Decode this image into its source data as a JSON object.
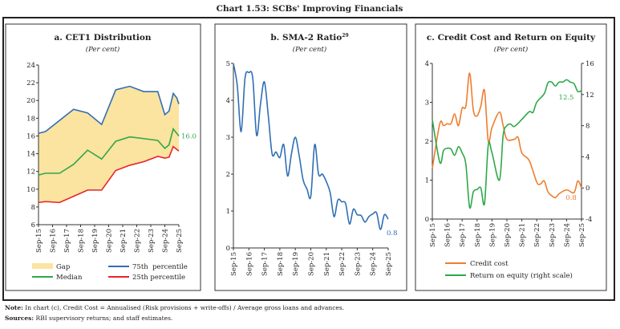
{
  "title": "Chart 1.53: SCBs' Improving Financials",
  "notes": {
    "note_label": "Note:",
    "note_text": "In chart (c), Credit Cost = Annualised (Risk provisions + write-offs) / Average gross loans and advances.",
    "sources_label": "Sources:",
    "sources_text": "RBI supervisory returns; and staff estimates."
  },
  "colors": {
    "gap": "#fbe3a0",
    "p75": "#2f6fb5",
    "median": "#2ea84a",
    "p25": "#e8242a",
    "sma": "#2f6fb5",
    "credit": "#ef7d2e",
    "roe": "#2ea84a"
  },
  "chart_data": [
    {
      "type": "area",
      "title": "a. CET1 Distribution",
      "subtitle": "(Per cent)",
      "x_ticks": [
        "Sep-15",
        "Sep-16",
        "Sep-17",
        "Sep-18",
        "Sep-19",
        "Sep-20",
        "Sep-21",
        "Sep-22",
        "Sep-23",
        "Sep-24",
        "Sep-25"
      ],
      "ylim": [
        6,
        24
      ],
      "y_ticks": [
        "6",
        "8",
        "10",
        "12",
        "14",
        "16",
        "18",
        "20",
        "22",
        "24"
      ],
      "x_unit": "years since Sep-15",
      "series": [
        {
          "name": "75th  percentile",
          "x": [
            0,
            0.5,
            2.5,
            3.5,
            4.5,
            5.5,
            6.5,
            7.5,
            8.5,
            9,
            9.3,
            9.6,
            9.85,
            10
          ],
          "values": [
            16.3,
            16.5,
            19.0,
            18.6,
            17.3,
            21.2,
            21.6,
            21.0,
            21.0,
            18.4,
            18.8,
            20.8,
            20.3,
            19.6
          ]
        },
        {
          "name": "Median",
          "x": [
            0,
            0.5,
            1.5,
            2.5,
            3.5,
            4.5,
            5.5,
            6.5,
            7.5,
            8.5,
            9,
            9.3,
            9.6,
            10
          ],
          "values": [
            11.6,
            11.8,
            11.8,
            12.8,
            14.4,
            13.4,
            15.4,
            15.9,
            15.7,
            15.5,
            14.6,
            15.0,
            16.8,
            16.0
          ]
        },
        {
          "name": "25th percentile",
          "x": [
            0,
            0.5,
            1.5,
            2.5,
            3.5,
            4.5,
            5.5,
            6.5,
            7.5,
            8.5,
            9,
            9.3,
            9.6,
            10
          ],
          "values": [
            8.5,
            8.6,
            8.5,
            9.2,
            9.9,
            9.9,
            12.1,
            12.7,
            13.1,
            13.7,
            13.5,
            13.6,
            14.8,
            14.3
          ]
        }
      ],
      "gap_label": "Gap",
      "annotation": "16.0"
    },
    {
      "type": "line",
      "title": "b. SMA-2 Ratio",
      "title_sup": "29",
      "subtitle": "(Per cent)",
      "x_ticks": [
        "Sep-15",
        "Sep-16",
        "Sep-17",
        "Sep-18",
        "Sep-19",
        "Sep-20",
        "Sep-21",
        "Sep-22",
        "Sep-23",
        "Sep-24",
        "Sep-25"
      ],
      "ylim": [
        0,
        5
      ],
      "y_ticks": [
        "0",
        "1",
        "2",
        "3",
        "4",
        "5"
      ],
      "series": [
        {
          "name": "SMA-2 ratio",
          "x": [
            0,
            0.25,
            0.5,
            0.75,
            1,
            1.25,
            1.5,
            1.75,
            2,
            2.25,
            2.5,
            2.75,
            3,
            3.25,
            3.5,
            3.75,
            4,
            4.25,
            4.5,
            4.75,
            5,
            5.25,
            5.5,
            5.75,
            6,
            6.25,
            6.5,
            6.75,
            7,
            7.25,
            7.5,
            7.75,
            8,
            8.25,
            8.5,
            8.75,
            9,
            9.25,
            9.5,
            9.75,
            10
          ],
          "values": [
            5.0,
            4.4,
            3.15,
            4.6,
            4.75,
            4.6,
            3.05,
            3.9,
            4.5,
            3.6,
            2.55,
            2.6,
            2.45,
            2.8,
            1.95,
            2.55,
            3.0,
            2.5,
            1.85,
            1.6,
            1.4,
            2.8,
            2.0,
            2.0,
            1.8,
            1.5,
            0.85,
            1.3,
            1.25,
            1.2,
            0.65,
            1.05,
            0.9,
            0.88,
            0.7,
            0.85,
            0.92,
            0.95,
            0.5,
            0.9,
            0.78
          ]
        }
      ],
      "annotation": "0.8"
    },
    {
      "type": "line",
      "title": "c. Credit Cost and Return on Equity",
      "subtitle": "(Per cent)",
      "x_ticks": [
        "Sep-15",
        "Sep-16",
        "Sep-17",
        "Sep-18",
        "Sep-19",
        "Sep-20",
        "Sep-21",
        "Sep-22",
        "Sep-23",
        "Sep-24",
        "Sep-25"
      ],
      "ylim": [
        0,
        4
      ],
      "y_ticks": [
        "0",
        "1",
        "2",
        "3",
        "4"
      ],
      "y2lim": [
        -4,
        16
      ],
      "y2_ticks": [
        "-4",
        "0",
        "4",
        "8",
        "12",
        "16"
      ],
      "series": [
        {
          "name": "Credit cost",
          "axis": "left",
          "x": [
            0,
            0.5,
            0.75,
            1,
            1.25,
            1.5,
            1.75,
            2,
            2.25,
            2.5,
            2.75,
            3,
            3.25,
            3.5,
            3.75,
            4,
            4.5,
            4.75,
            5,
            5.5,
            5.75,
            6,
            6.5,
            7,
            7.25,
            7.5,
            7.75,
            8,
            8.25,
            8.5,
            9,
            9.5,
            9.75,
            10
          ],
          "values": [
            1.3,
            2.45,
            2.4,
            2.45,
            2.45,
            2.7,
            2.4,
            2.85,
            2.9,
            3.75,
            2.8,
            2.65,
            2.9,
            3.3,
            2.0,
            2.35,
            2.75,
            2.4,
            2.05,
            2.05,
            2.1,
            1.7,
            1.5,
            0.95,
            0.9,
            0.98,
            0.7,
            0.6,
            0.55,
            0.65,
            0.75,
            0.68,
            0.98,
            0.8
          ]
        },
        {
          "name": "Return on equity (right scale)",
          "axis": "right",
          "x": [
            0,
            0.5,
            0.75,
            1,
            1.25,
            1.5,
            1.75,
            2,
            2.25,
            2.5,
            2.75,
            3,
            3.25,
            3.5,
            3.75,
            4,
            4.5,
            4.75,
            5,
            5.25,
            5.5,
            6,
            6.5,
            6.75,
            7,
            7.5,
            7.75,
            8,
            8.25,
            8.5,
            8.75,
            9,
            9.25,
            9.5,
            9.75,
            10
          ],
          "values": [
            8.8,
            3.3,
            4.8,
            5.1,
            5.0,
            4.2,
            5.3,
            4.5,
            3.0,
            -2.5,
            -0.5,
            -0.2,
            0,
            -2.0,
            5.5,
            4.5,
            1.0,
            6.8,
            8.0,
            8.2,
            7.9,
            8.8,
            9.8,
            9.7,
            11.0,
            12.1,
            13.5,
            13.6,
            13.1,
            13.6,
            13.6,
            13.9,
            13.6,
            13.4,
            12.4,
            12.5
          ]
        }
      ],
      "annotations": [
        "12.5",
        "0.8"
      ]
    }
  ]
}
